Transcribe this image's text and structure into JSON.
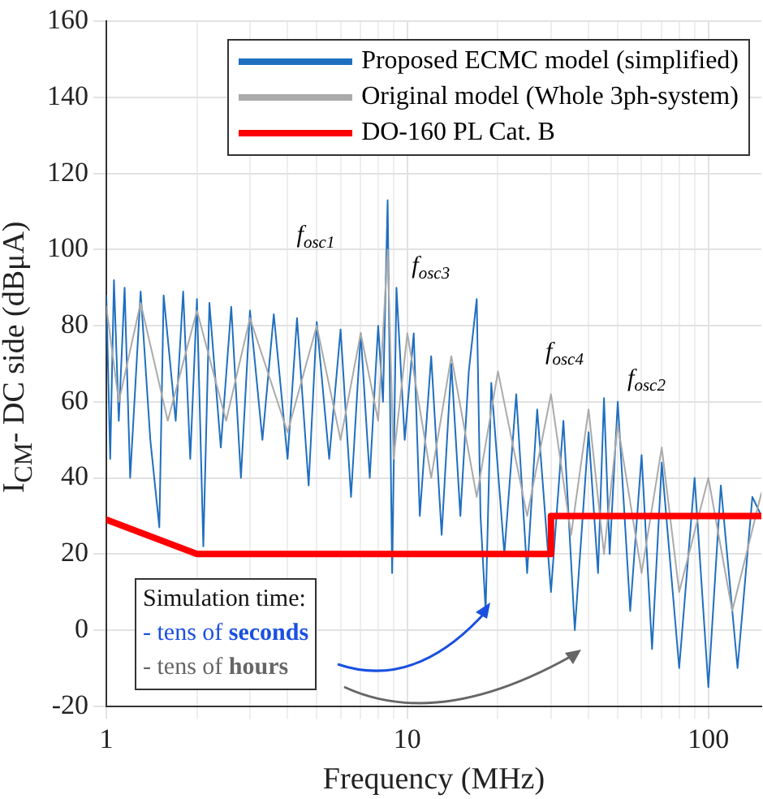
{
  "chart_data": {
    "type": "line",
    "xlabel": "Frequency (MHz)",
    "ylabel": "I$_{CM}$- DC side (dBμA)",
    "log": "x",
    "grid": true,
    "legend": "top right",
    "marker": "none",
    "line_style": "solid",
    "xlim": [
      1,
      150
    ],
    "ylim": [
      -20,
      160
    ],
    "xticks": [
      1,
      {
        "value": 2,
        "label": null
      },
      {
        "value": 3,
        "label": null
      },
      {
        "value": 4,
        "label": null
      },
      {
        "value": 5,
        "label": null
      },
      {
        "value": 6,
        "label": null
      },
      {
        "value": 7,
        "label": null
      },
      {
        "value": 8,
        "label": null
      },
      {
        "value": 9,
        "label": null
      },
      10,
      {
        "value": 20,
        "label": null
      },
      {
        "value": 30,
        "label": null
      },
      {
        "value": 40,
        "label": null
      },
      {
        "value": 50,
        "label": null
      },
      {
        "value": 60,
        "label": null
      },
      {
        "value": 70,
        "label": null
      },
      {
        "value": 80,
        "label": null
      },
      {
        "value": 90,
        "label": null
      },
      100
    ],
    "yticks": [
      -20,
      0,
      20,
      40,
      60,
      80,
      100,
      120,
      140,
      160
    ],
    "series": [
      {
        "name": "Proposed ECMC model (simplified)",
        "color": "#1f6fc0",
        "x": [
          1,
          1.03,
          1.06,
          1.1,
          1.15,
          1.2,
          1.3,
          1.4,
          1.5,
          1.55,
          1.7,
          1.8,
          1.9,
          2,
          2.1,
          2.2,
          2.4,
          2.6,
          2.8,
          3,
          3.3,
          3.6,
          4,
          4.3,
          4.7,
          5,
          5.5,
          6,
          6.5,
          7,
          7.5,
          8,
          8.3,
          8.6,
          8.9,
          9.2,
          9.8,
          10.5,
          11,
          12,
          13,
          14,
          15,
          16,
          17,
          17.5,
          18.2,
          19,
          21,
          23,
          25,
          27,
          30,
          33,
          36,
          40,
          43,
          45,
          47,
          50,
          55,
          60,
          65,
          70,
          80,
          90,
          100,
          110,
          125,
          140,
          150
        ],
        "values": [
          88,
          45,
          92,
          55,
          90,
          40,
          89,
          50,
          27,
          88,
          55,
          89,
          45,
          87,
          22,
          86,
          48,
          85,
          40,
          84,
          50,
          83,
          45,
          82,
          38,
          81,
          45,
          79,
          35,
          78,
          40,
          80,
          60,
          113,
          15,
          90,
          50,
          78,
          30,
          72,
          25,
          70,
          30,
          68,
          87,
          30,
          5,
          65,
          20,
          62,
          15,
          58,
          10,
          55,
          0,
          52,
          15,
          61,
          20,
          60,
          5,
          46,
          -5,
          44,
          -10,
          40,
          -15,
          38,
          -10,
          35,
          30
        ]
      },
      {
        "name": "Original model (Whole 3ph-system)",
        "color": "#aaaaaa",
        "x": [
          1,
          1.1,
          1.3,
          1.6,
          2,
          2.5,
          3,
          4,
          5,
          6,
          7,
          8,
          8.6,
          9,
          10,
          12,
          14,
          17,
          20,
          25,
          30,
          35,
          40,
          45,
          50,
          60,
          70,
          80,
          100,
          120,
          150
        ],
        "values": [
          85,
          60,
          86,
          55,
          84,
          55,
          82,
          52,
          80,
          50,
          78,
          55,
          100,
          45,
          78,
          40,
          72,
          35,
          68,
          30,
          62,
          25,
          58,
          20,
          54,
          15,
          48,
          10,
          40,
          5,
          36
        ]
      },
      {
        "name": "DO-160 PL Cat. B",
        "color": "#ff0000",
        "x": [
          1,
          2,
          30,
          30,
          150
        ],
        "values": [
          29,
          20,
          20,
          30,
          30
        ]
      }
    ],
    "annotations": [
      {
        "text": "f$_{osc1}$",
        "x": 8.6,
        "y": 113
      },
      {
        "text": "f$_{osc3}$",
        "x": 17,
        "y": 87
      },
      {
        "text": "f$_{osc4}$",
        "x": 45,
        "y": 61
      },
      {
        "text": "f$_{osc2}$",
        "x": 50,
        "y": 60
      },
      "Simulation time:",
      "- tens of seconds",
      "- tens of hours"
    ]
  }
}
